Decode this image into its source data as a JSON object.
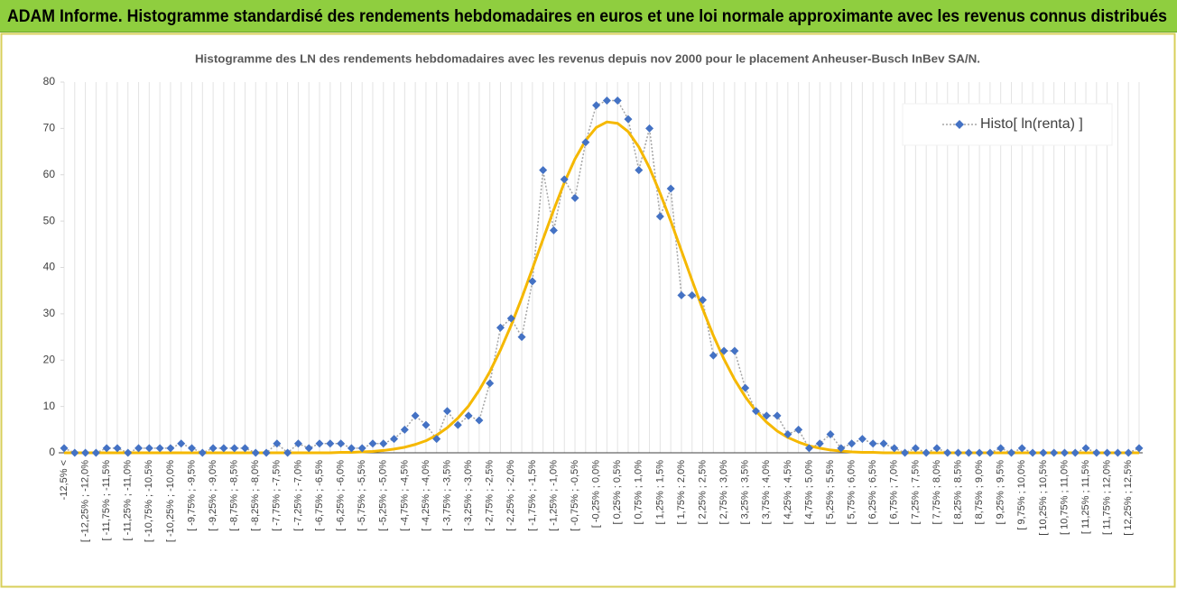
{
  "header": {
    "title": "ADAM Informe. Histogramme standardisé des rendements hebdomadaires en euros et une loi normale approximante avec les revenus connus distribués"
  },
  "chart_data": {
    "type": "line",
    "title": "Histogramme  des LN des rendements hebdomadaires avec les revenus depuis nov 2000 pour le placement Anheuser-Busch InBev SA/N.",
    "categories": [
      "-12,5% <",
      null,
      "[ -12,25% ; -12,0%",
      null,
      "[ -11,75% ; -11,5%",
      null,
      "[ -11,25% ; -11,0%",
      null,
      "[ -10,75% ; -10,5%",
      null,
      "[ -10,25% ; -10,0%",
      null,
      "[ -9,75% ; -9,5%",
      null,
      "[ -9,25% ; -9,0%",
      null,
      "[ -8,75% ; -8,5%",
      null,
      "[ -8,25% ; -8,0%",
      null,
      "[ -7,75% ; -7,5%",
      null,
      "[ -7,25% ; -7,0%",
      null,
      "[ -6,75% ; -6,5%",
      null,
      "[ -6,25% ; -6,0%",
      null,
      "[ -5,75% ; -5,5%",
      null,
      "[ -5,25% ; -5,0%",
      null,
      "[ -4,75% ; -4,5%",
      null,
      "[ -4,25% ; -4,0%",
      null,
      "[ -3,75% ; -3,5%",
      null,
      "[ -3,25% ; -3,0%",
      null,
      "[ -2,75% ; -2,5%",
      null,
      "[ -2,25% ; -2,0%",
      null,
      "[ -1,75% ; -1,5%",
      null,
      "[ -1,25% ; -1,0%",
      null,
      "[ -0,75% ; -0,5%",
      null,
      "[ -0,25% ; 0,0%",
      null,
      "[ 0,25% ; 0,5%",
      null,
      "[ 0,75% ; 1,0%",
      null,
      "[ 1,25% ; 1,5%",
      null,
      "[ 1,75% ; 2,0%",
      null,
      "[ 2,25% ; 2,5%",
      null,
      "[ 2,75% ; 3,0%",
      null,
      "[ 3,25% ; 3,5%",
      null,
      "[ 3,75% ; 4,0%",
      null,
      "[ 4,25% ; 4,5%",
      null,
      "[ 4,75% ; 5,0%",
      null,
      "[ 5,25% ; 5,5%",
      null,
      "[ 5,75% ; 6,0%",
      null,
      "[ 6,25% ; 6,5%",
      null,
      "[ 6,75% ; 7,0%",
      null,
      "[ 7,25% ; 7,5%",
      null,
      "[ 7,75% ; 8,0%",
      null,
      "[ 8,25% ; 8,5%",
      null,
      "[ 8,75% ; 9,0%",
      null,
      "[ 9,25% ; 9,5%",
      null,
      "[ 9,75% ; 10,0%",
      null,
      "[ 10,25% ; 10,5%",
      null,
      "[ 10,75% ; 11,0%",
      null,
      "[ 11,25% ; 11,5%",
      null,
      "[ 11,75% ; 12,0%",
      null,
      "[ 12,25% ; 12,5%",
      null
    ],
    "series": [
      {
        "name": "Histo[ ln(renta) ]",
        "color": "#4472c4",
        "line_color": "#a5a5a5",
        "values": [
          1,
          0,
          0,
          0,
          1,
          1,
          0,
          1,
          1,
          1,
          1,
          2,
          1,
          0,
          1,
          1,
          1,
          1,
          0,
          0,
          2,
          0,
          2,
          1,
          2,
          2,
          2,
          1,
          1,
          2,
          2,
          3,
          5,
          8,
          6,
          3,
          9,
          6,
          8,
          7,
          15,
          27,
          29,
          25,
          37,
          61,
          48,
          59,
          55,
          67,
          75,
          76,
          76,
          72,
          61,
          70,
          51,
          57,
          34,
          34,
          33,
          21,
          22,
          22,
          14,
          9,
          8,
          8,
          4,
          5,
          1,
          2,
          4,
          1,
          2,
          3,
          2,
          2,
          1,
          0,
          1,
          0,
          1,
          0,
          0,
          0,
          0,
          0,
          1,
          0,
          1,
          0,
          0,
          0,
          0,
          0,
          1,
          0,
          0,
          0,
          0,
          1
        ]
      },
      {
        "color": "#f5b800",
        "values": [
          0,
          0,
          0,
          0,
          0,
          0,
          0,
          0,
          0,
          0,
          0,
          0,
          0,
          0,
          0,
          0,
          0,
          0,
          0,
          0,
          0,
          0,
          0,
          0,
          0,
          0,
          0.1,
          0.1,
          0.2,
          0.3,
          0.5,
          0.8,
          1.2,
          1.8,
          2.6,
          3.8,
          5.4,
          7.5,
          10.1,
          13.5,
          17.5,
          22.2,
          27.5,
          33.4,
          39.7,
          46.1,
          52.4,
          58.3,
          63.4,
          67.4,
          70.2,
          71.4,
          71.1,
          69.3,
          66,
          61.5,
          56,
          50,
          43.6,
          37.2,
          31,
          25.3,
          20.2,
          15.8,
          12.1,
          9,
          6.6,
          4.7,
          3.3,
          2.3,
          1.5,
          1,
          0.6,
          0.4,
          0.2,
          0.1,
          0.1,
          0,
          0,
          0,
          0,
          0,
          0,
          0,
          0,
          0,
          0,
          0,
          0,
          0,
          0,
          0,
          0,
          0,
          0,
          0,
          0,
          0,
          0,
          0,
          0,
          0
        ]
      }
    ],
    "ylim": [
      0,
      80
    ],
    "yticks": [
      0,
      10,
      20,
      30,
      40,
      50,
      60,
      70,
      80
    ],
    "grid": true,
    "legend": "top-right"
  }
}
